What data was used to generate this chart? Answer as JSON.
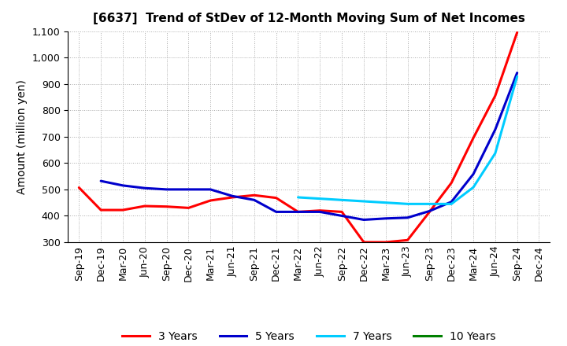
{
  "title": "[6637]  Trend of StDev of 12-Month Moving Sum of Net Incomes",
  "ylabel": "Amount (million yen)",
  "ylim": [
    300,
    1100
  ],
  "yticks": [
    300,
    400,
    500,
    600,
    700,
    800,
    900,
    1000,
    1100
  ],
  "background_color": "#ffffff",
  "plot_bg_color": "#ffffff",
  "grid_color": "#aaaaaa",
  "title_fontsize": 11,
  "label_fontsize": 10,
  "tick_fontsize": 9,
  "xtick_labels": [
    "Sep-19",
    "Dec-19",
    "Mar-20",
    "Jun-20",
    "Sep-20",
    "Dec-20",
    "Mar-21",
    "Jun-21",
    "Sep-21",
    "Dec-21",
    "Mar-22",
    "Jun-22",
    "Sep-22",
    "Dec-22",
    "Mar-23",
    "Jun-23",
    "Sep-23",
    "Dec-23",
    "Mar-24",
    "Jun-24",
    "Sep-24",
    "Dec-24"
  ],
  "series": {
    "3 Years": {
      "color": "#ff0000",
      "dates": [
        "Sep-19",
        "Dec-19",
        "Mar-20",
        "Jun-20",
        "Sep-20",
        "Dec-20",
        "Mar-21",
        "Jun-21",
        "Sep-21",
        "Dec-21",
        "Mar-22",
        "Jun-22",
        "Sep-22",
        "Dec-22",
        "Mar-23",
        "Jun-23",
        "Sep-23",
        "Dec-23",
        "Mar-24",
        "Jun-24",
        "Sep-24"
      ],
      "values": [
        507,
        422,
        422,
        437,
        435,
        430,
        458,
        470,
        478,
        468,
        415,
        420,
        415,
        300,
        300,
        308,
        415,
        525,
        695,
        855,
        1095
      ]
    },
    "5 Years": {
      "color": "#0000cc",
      "dates": [
        "Dec-19",
        "Mar-20",
        "Jun-20",
        "Sep-20",
        "Dec-20",
        "Mar-21",
        "Jun-21",
        "Sep-21",
        "Dec-21",
        "Mar-22",
        "Jun-22",
        "Sep-22",
        "Dec-22",
        "Mar-23",
        "Jun-23",
        "Sep-23",
        "Dec-23",
        "Mar-24",
        "Jun-24",
        "Sep-24"
      ],
      "values": [
        532,
        515,
        505,
        500,
        500,
        500,
        475,
        460,
        415,
        415,
        415,
        400,
        385,
        390,
        393,
        418,
        453,
        558,
        727,
        942
      ]
    },
    "7 Years": {
      "color": "#00ccff",
      "dates": [
        "Mar-22",
        "Jun-22",
        "Sep-22",
        "Dec-22",
        "Mar-23",
        "Jun-23",
        "Sep-23",
        "Dec-23",
        "Mar-24",
        "Jun-24",
        "Sep-24"
      ],
      "values": [
        470,
        465,
        460,
        455,
        450,
        445,
        445,
        445,
        508,
        637,
        928
      ]
    },
    "10 Years": {
      "color": "#008000",
      "dates": [],
      "values": []
    }
  },
  "legend_labels": [
    "3 Years",
    "5 Years",
    "7 Years",
    "10 Years"
  ],
  "legend_colors": [
    "#ff0000",
    "#0000cc",
    "#00ccff",
    "#008000"
  ]
}
